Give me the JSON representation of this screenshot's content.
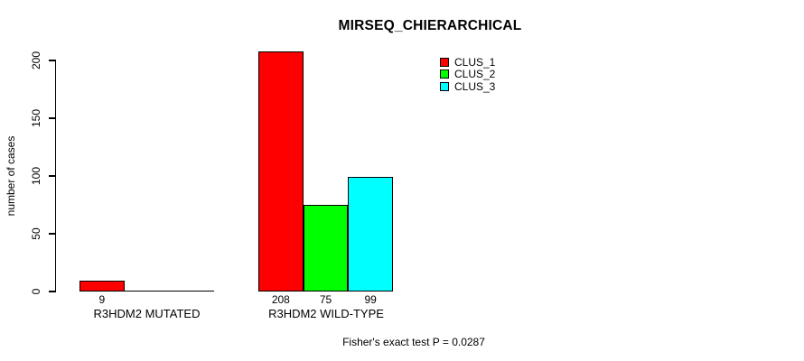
{
  "chart_data": {
    "type": "bar",
    "title": "MIRSEQ_CHIERARCHICAL",
    "ylabel": "number of cases",
    "xlabel": "",
    "categories": [
      "R3HDM2 MUTATED",
      "R3HDM2 WILD-TYPE"
    ],
    "series": [
      {
        "name": "CLUS_1",
        "color": "#ff0000",
        "values": [
          9,
          208
        ]
      },
      {
        "name": "CLUS_2",
        "color": "#00ff00",
        "values": [
          0,
          75
        ]
      },
      {
        "name": "CLUS_3",
        "color": "#00ffff",
        "values": [
          0,
          99
        ]
      }
    ],
    "bar_value_labels": [
      [
        "9",
        "",
        ""
      ],
      [
        "208",
        "75",
        "99"
      ]
    ],
    "yticks": [
      0,
      50,
      100,
      150,
      200
    ],
    "ylim": [
      0,
      200
    ],
    "grid": false,
    "legend_position": "top-right",
    "axis_color": "#000000",
    "bar_border_color": "#000000",
    "footer": "Fisher's exact test P = 0.0287"
  }
}
